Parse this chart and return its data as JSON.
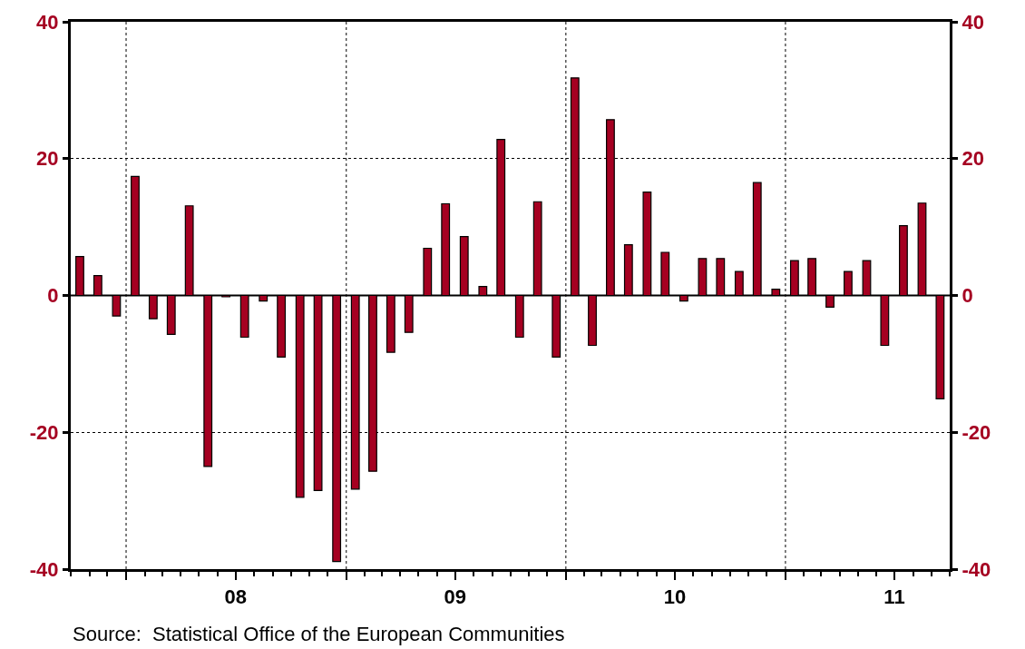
{
  "chart_data": {
    "type": "bar",
    "x": [
      "2007-10-16",
      "2007-11-15",
      "2007-12-16",
      "2008-01-16",
      "2008-02-15",
      "2008-03-16",
      "2008-04-15",
      "2008-05-16",
      "2008-06-15",
      "2008-07-16",
      "2008-08-16",
      "2008-09-15",
      "2008-10-16",
      "2008-11-15",
      "2008-12-16",
      "2009-01-16",
      "2009-02-14",
      "2009-03-16",
      "2009-04-15",
      "2009-05-16",
      "2009-06-15",
      "2009-07-16",
      "2009-08-16",
      "2009-09-15",
      "2009-10-16",
      "2009-11-15",
      "2009-12-16",
      "2010-01-16",
      "2010-02-14",
      "2010-03-16",
      "2010-04-15",
      "2010-05-16",
      "2010-06-15",
      "2010-07-16",
      "2010-08-16",
      "2010-09-15",
      "2010-10-16",
      "2010-11-15",
      "2010-12-16",
      "2011-01-16",
      "2011-02-14",
      "2011-03-16",
      "2011-04-15",
      "2011-05-16",
      "2011-06-15",
      "2011-07-16",
      "2011-08-16",
      "2011-09-15"
    ],
    "values": [
      5.7,
      2.9,
      -3.0,
      17.4,
      -3.4,
      -5.7,
      13.1,
      -25.0,
      -0.2,
      -6.1,
      -0.8,
      -9.0,
      -29.5,
      -28.5,
      -38.9,
      -28.3,
      -25.7,
      -8.3,
      -5.4,
      6.9,
      13.4,
      8.6,
      1.3,
      22.8,
      -6.1,
      13.7,
      -9.0,
      31.8,
      -7.3,
      25.7,
      7.4,
      15.1,
      6.3,
      -0.8,
      5.4,
      5.4,
      3.5,
      16.5,
      0.9,
      5.1,
      5.4,
      -1.7,
      3.5,
      5.1,
      -7.3,
      10.2,
      13.5,
      -15.1
    ],
    "color": "#a50021",
    "xlim": [
      "2007-10-01",
      "2011-10-01"
    ],
    "xticks": [
      {
        "value": "2008-01-01",
        "label": null
      },
      {
        "value": "2008-07-01",
        "label": "08"
      },
      {
        "value": "2009-01-01",
        "label": null
      },
      {
        "value": "2009-07-01",
        "label": "09"
      },
      {
        "value": "2010-01-01",
        "label": null
      },
      {
        "value": "2010-07-01",
        "label": "10"
      },
      {
        "value": "2011-01-01",
        "label": null
      },
      {
        "value": "2011-07-01",
        "label": "11"
      }
    ],
    "ylim": [
      -40,
      40
    ],
    "yticks": [
      -40,
      -20,
      0,
      20,
      40
    ],
    "y2lim": [
      -40,
      40
    ],
    "y2ticks": [
      -40,
      -20,
      0,
      20,
      40
    ],
    "grid": "y",
    "ref_lines": [
      {
        "axis": "x",
        "value": "2008-01-01",
        "line_style": "dotted"
      },
      {
        "axis": "x",
        "value": "2009-01-01",
        "line_style": "dotted"
      },
      {
        "axis": "x",
        "value": "2010-01-01",
        "line_style": "dotted"
      },
      {
        "axis": "x",
        "value": "2011-01-01",
        "line_style": "dotted"
      },
      {
        "axis": "y",
        "value": 0,
        "line_style": "solid"
      }
    ],
    "annotations": [
      "Source:  Statistical Office of the European Communities"
    ]
  }
}
